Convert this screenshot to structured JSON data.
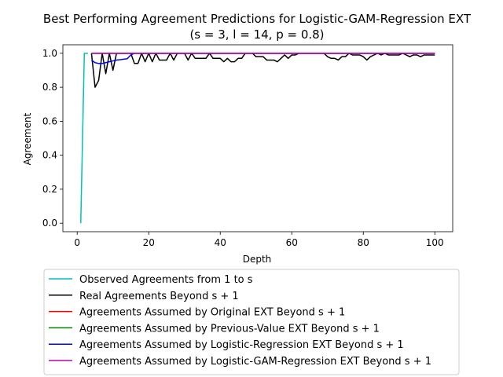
{
  "chart_data": {
    "type": "line",
    "title": "Best Performing Agreement Predictions for Logistic-GAM-Regression EXT",
    "subtitle": "(s = 3, l = 14, p = 0.8)",
    "xlabel": "Depth",
    "ylabel": "Agreement",
    "xlim": [
      -4,
      105
    ],
    "ylim": [
      -0.05,
      1.05
    ],
    "xticks": [
      0,
      20,
      40,
      60,
      80,
      100
    ],
    "yticks": [
      0.0,
      0.2,
      0.4,
      0.6,
      0.8,
      1.0
    ],
    "legend_position": "below-plot",
    "series": [
      {
        "name": "Observed Agreements from 1 to s",
        "color": "#00bfbf",
        "x": [
          1,
          2,
          3
        ],
        "y": [
          0.0,
          1.0,
          1.0
        ]
      },
      {
        "name": "Real Agreements Beyond s + 1",
        "color": "#000000",
        "x": [
          4,
          5,
          6,
          7,
          8,
          9,
          10,
          11,
          12,
          13,
          14,
          15,
          16,
          17,
          18,
          19,
          20,
          21,
          22,
          23,
          24,
          25,
          26,
          27,
          28,
          29,
          30,
          31,
          32,
          33,
          34,
          35,
          36,
          37,
          38,
          39,
          40,
          41,
          42,
          43,
          44,
          45,
          46,
          47,
          48,
          49,
          50,
          51,
          52,
          53,
          54,
          55,
          56,
          57,
          58,
          59,
          60,
          61,
          62,
          63,
          64,
          65,
          66,
          67,
          68,
          69,
          70,
          71,
          72,
          73,
          74,
          75,
          76,
          77,
          78,
          79,
          80,
          81,
          82,
          83,
          84,
          85,
          86,
          87,
          88,
          89,
          90,
          91,
          92,
          93,
          94,
          95,
          96,
          97,
          98,
          99,
          100
        ],
        "y": [
          1.0,
          0.8,
          0.84,
          1.0,
          0.88,
          1.0,
          0.9,
          1.0,
          1.0,
          1.0,
          1.0,
          1.0,
          0.94,
          0.94,
          1.0,
          0.95,
          1.0,
          0.95,
          1.0,
          0.96,
          0.96,
          0.96,
          1.0,
          0.96,
          1.0,
          1.0,
          1.0,
          0.96,
          1.0,
          0.97,
          0.97,
          0.97,
          0.97,
          1.0,
          0.97,
          0.97,
          0.97,
          0.95,
          0.97,
          0.95,
          0.95,
          0.97,
          0.97,
          1.0,
          1.0,
          1.0,
          0.98,
          0.98,
          0.98,
          0.96,
          0.96,
          0.96,
          0.95,
          0.97,
          0.99,
          0.97,
          0.99,
          0.99,
          1.0,
          1.0,
          1.0,
          1.0,
          1.0,
          1.0,
          1.0,
          1.0,
          0.98,
          0.97,
          0.97,
          0.96,
          0.98,
          0.98,
          1.0,
          0.99,
          0.99,
          0.99,
          0.98,
          0.96,
          0.98,
          0.99,
          1.0,
          0.99,
          1.0,
          0.99,
          0.99,
          0.99,
          0.99,
          1.0,
          0.99,
          0.98,
          0.99,
          0.99,
          0.98,
          0.99,
          0.99,
          0.99,
          0.99
        ]
      },
      {
        "name": "Agreements Assumed by Original EXT Beyond s + 1",
        "color": "#ff0000",
        "x": [
          4,
          100
        ],
        "y": [
          1.0,
          1.0
        ]
      },
      {
        "name": "Agreements Assumed by Previous-Value EXT Beyond s + 1",
        "color": "#008000",
        "x": [
          4,
          100
        ],
        "y": [
          1.0,
          1.0
        ]
      },
      {
        "name": "Agreements Assumed by Logistic-Regression EXT Beyond s + 1",
        "color": "#0000ff",
        "x": [
          4,
          5,
          6,
          7,
          8,
          9,
          10,
          11,
          12,
          13,
          14,
          15,
          16,
          100
        ],
        "y": [
          0.96,
          0.945,
          0.94,
          0.94,
          0.945,
          0.95,
          0.955,
          0.96,
          0.962,
          0.965,
          0.968,
          0.99,
          1.0,
          1.0
        ]
      },
      {
        "name": "Agreements Assumed by Logistic-GAM-Regression EXT Beyond s + 1",
        "color": "#bf00bf",
        "x": [
          4,
          100
        ],
        "y": [
          1.0,
          1.0
        ]
      }
    ]
  }
}
